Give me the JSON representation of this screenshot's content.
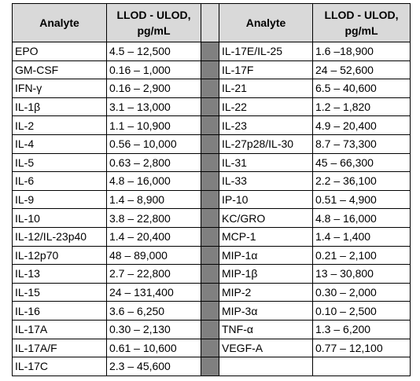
{
  "left": {
    "header": [
      "Analyte",
      "LLOD - ULOD, pg/mL"
    ],
    "rows": [
      [
        "EPO",
        "4.5 – 12,500"
      ],
      [
        "GM-CSF",
        "0.16 – 1,000"
      ],
      [
        "IFN-γ",
        "0.16 – 2,900"
      ],
      [
        "IL-1β",
        "3.1 – 13,000"
      ],
      [
        "IL-2",
        "1.1 – 10,900"
      ],
      [
        "IL-4",
        "0.56 – 10,000"
      ],
      [
        "IL-5",
        "0.63 – 2,800"
      ],
      [
        "IL-6",
        "4.8 – 16,000"
      ],
      [
        "IL-9",
        "1.4 – 8,900"
      ],
      [
        "IL-10",
        "3.8 – 22,800"
      ],
      [
        "IL-12/IL-23p40",
        "1.4 – 20,400"
      ],
      [
        "IL-12p70",
        "48 – 89,000"
      ],
      [
        "IL-13",
        "2.7 – 22,800"
      ],
      [
        "IL-15",
        "24 – 131,400"
      ],
      [
        "IL-16",
        "3.6 – 6,250"
      ],
      [
        "IL-17A",
        "0.30 – 2,130"
      ],
      [
        "IL-17A/F",
        "0.61 – 10,600"
      ],
      [
        "IL-17C",
        "2.3 – 45,600"
      ]
    ]
  },
  "right": {
    "header": [
      "Analyte",
      "LLOD - ULOD, pg/mL"
    ],
    "rows": [
      [
        "IL-17E/IL-25",
        "1.6 –18,900"
      ],
      [
        "IL-17F",
        "24 – 52,600"
      ],
      [
        "IL-21",
        "6.5 – 40,600"
      ],
      [
        "IL-22",
        "1.2 – 1,820"
      ],
      [
        "IL-23",
        "4.9 – 20,400"
      ],
      [
        "IL-27p28/IL-30",
        "8.7 – 73,300"
      ],
      [
        "IL-31",
        "45 – 66,300"
      ],
      [
        "IL-33",
        "2.2 – 36,100"
      ],
      [
        "IP-10",
        "0.51 – 4,900"
      ],
      [
        "KC/GRO",
        "4.8 – 16,000"
      ],
      [
        "MCP-1",
        "1.4 – 1,400"
      ],
      [
        "MIP-1α",
        "0.21 – 2,100"
      ],
      [
        "MIP-1β",
        "13 – 30,800"
      ],
      [
        "MIP-2",
        "0.30 – 2,000"
      ],
      [
        "MIP-3α",
        "0.10 – 2,500"
      ],
      [
        "TNF-α",
        "1.3 – 6,200"
      ],
      [
        "VEGF-A",
        "0.77 – 12,100"
      ]
    ]
  }
}
